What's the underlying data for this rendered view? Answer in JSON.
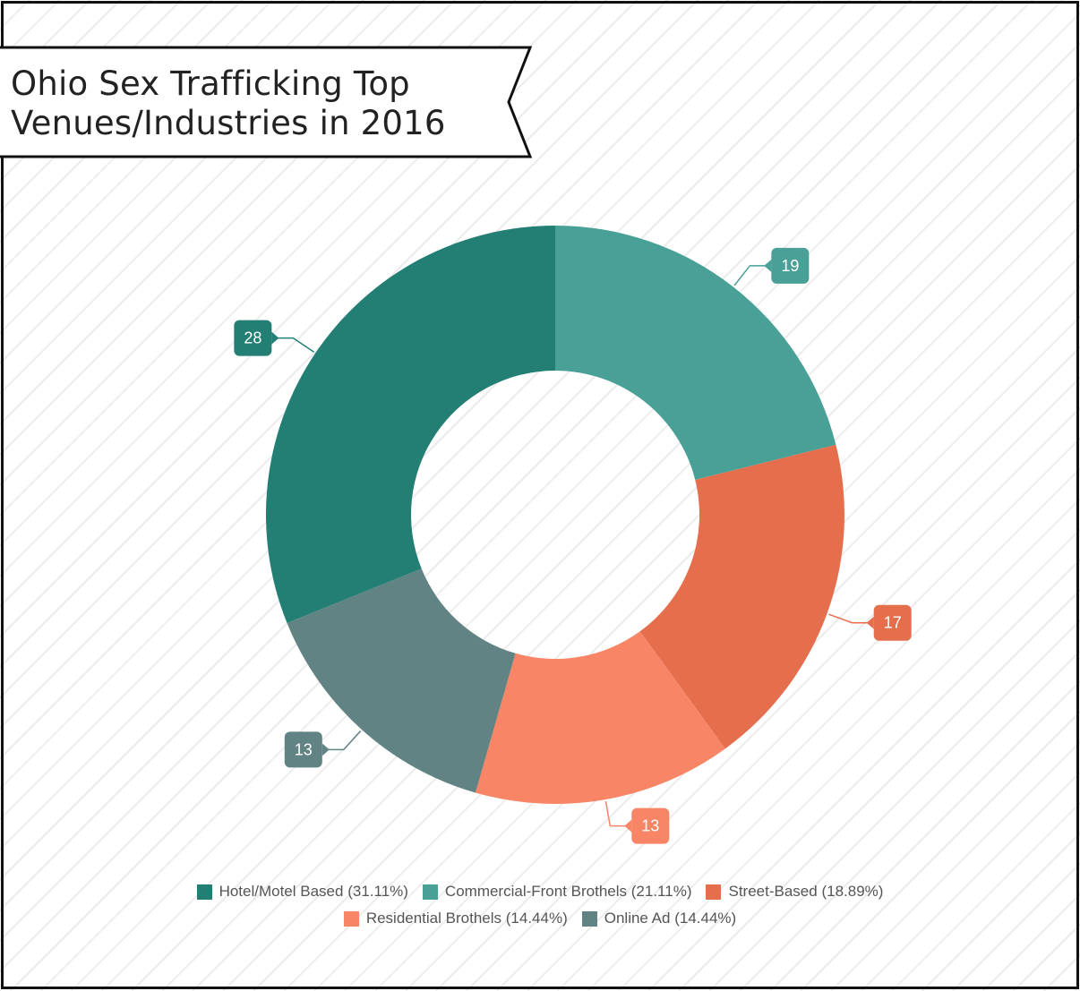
{
  "title": {
    "line1": "Ohio Sex Trafficking Top",
    "line2": "Venues/Industries in 2016"
  },
  "colors": {
    "hotel": "#237f74",
    "commercial": "#48a096",
    "street": "#e56f4d",
    "residential": "#f78566",
    "online": "#628384"
  },
  "chart_data": {
    "type": "pie",
    "subtype": "donut",
    "title": "Ohio Sex Trafficking Top Venues/Industries in 2016",
    "legend_position": "bottom",
    "slices": [
      {
        "label": "Hotel/Motel Based",
        "value": 28,
        "value_label": "28",
        "percent_label": "(31.11%)",
        "color": "#237f74"
      },
      {
        "label": "Commercial-Front Brothels",
        "value": 19,
        "value_label": "19",
        "percent_label": "(21.11%)",
        "color": "#48a096"
      },
      {
        "label": "Street-Based",
        "value": 17,
        "value_label": "17",
        "percent_label": "(18.89%)",
        "color": "#e56f4d"
      },
      {
        "label": "Residential Brothels",
        "value": 13,
        "value_label": "13",
        "percent_label": "(14.44%)",
        "color": "#f78566"
      },
      {
        "label": "Online Ad",
        "value": 13,
        "value_label": "13",
        "percent_label": "(14.44%)",
        "color": "#628384"
      }
    ]
  }
}
